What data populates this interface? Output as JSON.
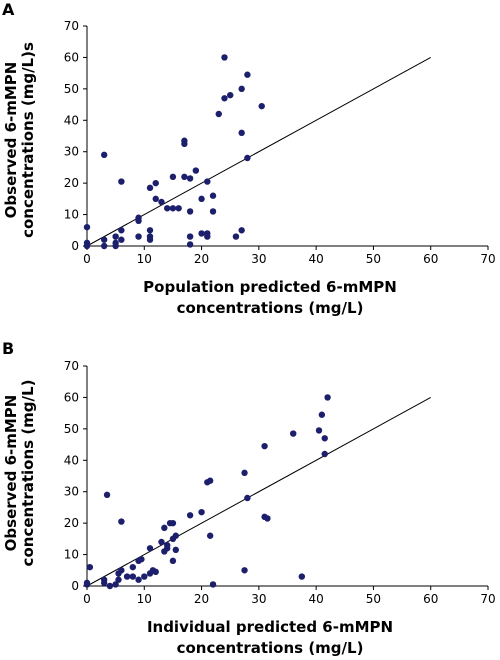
{
  "chart_data": [
    {
      "type": "scatter",
      "panel": "A",
      "xlabel": [
        "Population predicted 6-mMPN",
        "concentrations (mg/L)"
      ],
      "ylabel": [
        "Observed 6-mMPN",
        "concentrations (mg/L)s"
      ],
      "xlim": [
        0,
        70
      ],
      "ylim": [
        0,
        70
      ],
      "xticks": [
        0,
        10,
        20,
        30,
        40,
        50,
        60,
        70
      ],
      "yticks": [
        0,
        10,
        20,
        30,
        40,
        50,
        60,
        70
      ],
      "reference_line": {
        "x": [
          0,
          60
        ],
        "y": [
          0,
          60
        ]
      },
      "points": [
        [
          0,
          1
        ],
        [
          0,
          0
        ],
        [
          0,
          6
        ],
        [
          3,
          0
        ],
        [
          3,
          2
        ],
        [
          3,
          29
        ],
        [
          5,
          0
        ],
        [
          5,
          3
        ],
        [
          5,
          1
        ],
        [
          6,
          2
        ],
        [
          6,
          5
        ],
        [
          6,
          20.5
        ],
        [
          9,
          3
        ],
        [
          9,
          8
        ],
        [
          9,
          9
        ],
        [
          11,
          2
        ],
        [
          11,
          3
        ],
        [
          11,
          18.5
        ],
        [
          11,
          5
        ],
        [
          12,
          20
        ],
        [
          12,
          15
        ],
        [
          13,
          14
        ],
        [
          14,
          12
        ],
        [
          15,
          22
        ],
        [
          15,
          12
        ],
        [
          16,
          12
        ],
        [
          17,
          32.5
        ],
        [
          17,
          33.5
        ],
        [
          17,
          22
        ],
        [
          18,
          21.5
        ],
        [
          18,
          3
        ],
        [
          18,
          0.5
        ],
        [
          18,
          11
        ],
        [
          19,
          24
        ],
        [
          20,
          15
        ],
        [
          20,
          4
        ],
        [
          21,
          3
        ],
        [
          21,
          4
        ],
        [
          21,
          20.5
        ],
        [
          22,
          16
        ],
        [
          22,
          11
        ],
        [
          23,
          42
        ],
        [
          24,
          47
        ],
        [
          24,
          60
        ],
        [
          25,
          48
        ],
        [
          26,
          3
        ],
        [
          27,
          5
        ],
        [
          27,
          36
        ],
        [
          27,
          50
        ],
        [
          28,
          28
        ],
        [
          28,
          54.5
        ],
        [
          30.5,
          44.5
        ]
      ]
    },
    {
      "type": "scatter",
      "panel": "B",
      "xlabel": [
        "Individual predicted 6-mMPN",
        "concentrations (mg/L)"
      ],
      "ylabel": [
        "Observed 6-mMPN",
        "concentrations (mg/L)"
      ],
      "xlim": [
        0,
        70
      ],
      "ylim": [
        0,
        70
      ],
      "xticks": [
        0,
        10,
        20,
        30,
        40,
        50,
        60,
        70
      ],
      "yticks": [
        0,
        10,
        20,
        30,
        40,
        50,
        60,
        70
      ],
      "reference_line": {
        "x": [
          0,
          60
        ],
        "y": [
          0,
          60
        ]
      },
      "points": [
        [
          0,
          0.5
        ],
        [
          0,
          1
        ],
        [
          0.5,
          6
        ],
        [
          3,
          2
        ],
        [
          3,
          1
        ],
        [
          3.5,
          29
        ],
        [
          4,
          0
        ],
        [
          5,
          0.5
        ],
        [
          5.5,
          2
        ],
        [
          5.5,
          4
        ],
        [
          6,
          20.5
        ],
        [
          6,
          5
        ],
        [
          7,
          3
        ],
        [
          8,
          3
        ],
        [
          8,
          6
        ],
        [
          9,
          8
        ],
        [
          9.5,
          8.5
        ],
        [
          9,
          2
        ],
        [
          10,
          3
        ],
        [
          11,
          4
        ],
        [
          11,
          12
        ],
        [
          11.5,
          5
        ],
        [
          12,
          4.5
        ],
        [
          13,
          14
        ],
        [
          13.5,
          11
        ],
        [
          13.5,
          18.5
        ],
        [
          14,
          12
        ],
        [
          14,
          13
        ],
        [
          14.5,
          20
        ],
        [
          15,
          8
        ],
        [
          15,
          15
        ],
        [
          15,
          20
        ],
        [
          15.5,
          16
        ],
        [
          15.5,
          11.5
        ],
        [
          18,
          22.5
        ],
        [
          20,
          23.5
        ],
        [
          21,
          33
        ],
        [
          21.5,
          33.5
        ],
        [
          21.5,
          16
        ],
        [
          22,
          0.5
        ],
        [
          27.5,
          36
        ],
        [
          27.5,
          5
        ],
        [
          28,
          28
        ],
        [
          31,
          22
        ],
        [
          31,
          44.5
        ],
        [
          31.5,
          21.5
        ],
        [
          36,
          48.5
        ],
        [
          37.5,
          3
        ],
        [
          40.5,
          49.5
        ],
        [
          41,
          54.5
        ],
        [
          41.5,
          47
        ],
        [
          41.5,
          42
        ],
        [
          42,
          60
        ]
      ]
    }
  ],
  "panels": {
    "a": {
      "label": "A",
      "ylabel_line1": "Observed 6-mMPN",
      "ylabel_line2": "concentrations (mg/L)s",
      "xlabel_line1": "Population predicted 6-mMPN",
      "xlabel_line2": "concentrations (mg/L)"
    },
    "b": {
      "label": "B",
      "ylabel_line1": "Observed 6-mMPN",
      "ylabel_line2": "concentrations (mg/L)",
      "xlabel_line1": "Individual predicted 6-mMPN",
      "xlabel_line2": "concentrations (mg/L)"
    }
  }
}
